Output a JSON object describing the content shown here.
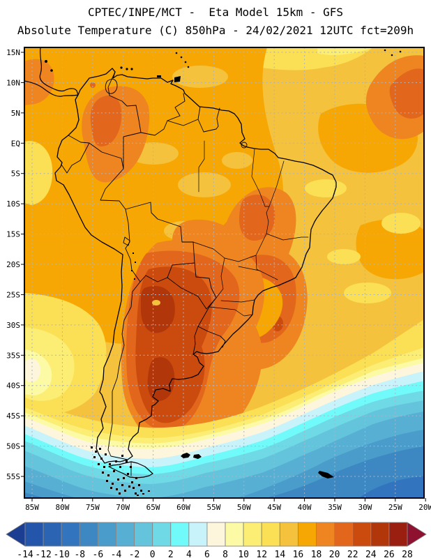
{
  "header": {
    "line1": "CPTEC/INPE/MCT -  Eta Model 15km - GFS",
    "line2": "Absolute Temperature (C) 850hPa - 24/02/2021 12UTC fct=209h"
  },
  "map": {
    "lat_ticks": [
      "15N",
      "10N",
      "5N",
      "EQ",
      "5S",
      "10S",
      "15S",
      "20S",
      "25S",
      "30S",
      "35S",
      "40S",
      "45S",
      "50S",
      "55S"
    ],
    "lon_ticks": [
      "85W",
      "80W",
      "75W",
      "70W",
      "65W",
      "60W",
      "55W",
      "50W",
      "45W",
      "40W",
      "35W",
      "30W",
      "25W",
      "20W"
    ]
  },
  "colorbar": {
    "unit": "C",
    "tick_labels": [
      "-14",
      "-12",
      "-10",
      "-8",
      "-6",
      "-4",
      "-2",
      "0",
      "2",
      "4",
      "6",
      "8",
      "10",
      "12",
      "14",
      "16",
      "18",
      "20",
      "22",
      "24",
      "26",
      "28"
    ]
  },
  "palette": {
    "below": "#1c3e92",
    "-14..-12": "#2356aa",
    "-12..-10": "#2b64b2",
    "-10..-8": "#3274bd",
    "-8..-6": "#3d88c3",
    "-6..-4": "#4a9cca",
    "-4..-2": "#57afd4",
    "-2..0": "#64c4dc",
    "0..2": "#6fd9e5",
    "2..4": "#70fafa",
    "4..6": "#c9f3fa",
    "6..8": "#fdf6dc",
    "8..10": "#fdfaa6",
    "10..12": "#fcee74",
    "12..14": "#fbdf55",
    "14..16": "#f4c23c",
    "16..18": "#f7a703",
    "18..20": "#ee8521",
    "20..22": "#e2661c",
    "22..24": "#cb4a0e",
    "24..26": "#b1360a",
    "26..28": "#9b1f10",
    "above": "#8e1130"
  }
}
